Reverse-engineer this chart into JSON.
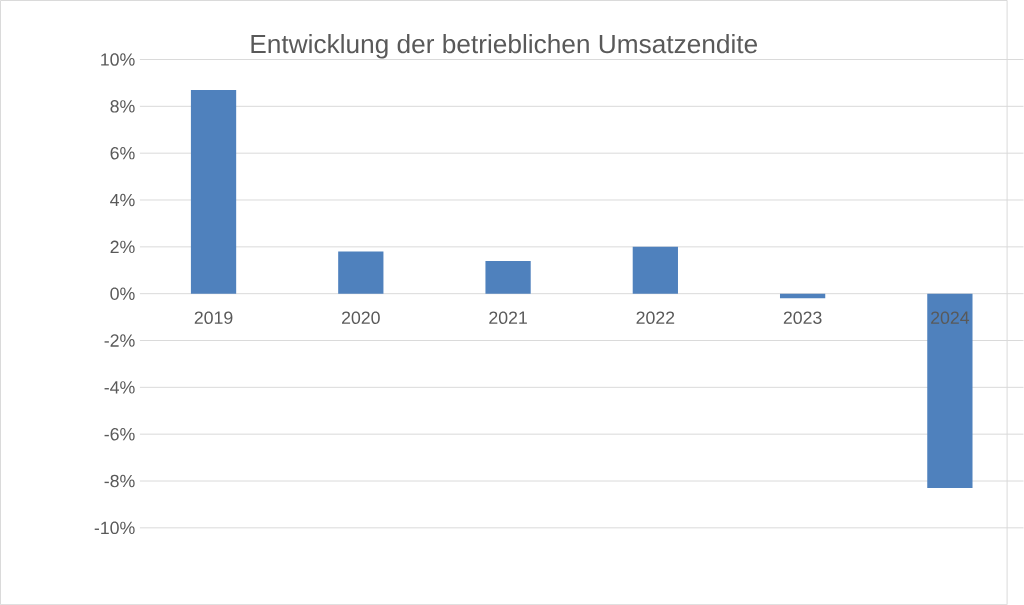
{
  "chart_data": {
    "type": "bar",
    "title": "Entwicklung der betrieblichen Umsatzendite",
    "categories": [
      "2019",
      "2020",
      "2021",
      "2022",
      "2023",
      "2024"
    ],
    "values": [
      8.7,
      1.8,
      1.4,
      2.0,
      -0.2,
      -8.3
    ],
    "color": "#4f81bd",
    "ylim": [
      -10,
      10
    ],
    "yticks": [
      {
        "value": -10,
        "label": "-10%"
      },
      {
        "value": -8,
        "label": "-8%"
      },
      {
        "value": -6,
        "label": "-6%"
      },
      {
        "value": -4,
        "label": "-4%"
      },
      {
        "value": -2,
        "label": "-2%"
      },
      {
        "value": 0,
        "label": "0%"
      },
      {
        "value": 2,
        "label": "2%"
      },
      {
        "value": 4,
        "label": "4%"
      },
      {
        "value": 6,
        "label": "6%"
      },
      {
        "value": 8,
        "label": "8%"
      },
      {
        "value": 10,
        "label": "10%"
      }
    ],
    "grid": "y"
  }
}
